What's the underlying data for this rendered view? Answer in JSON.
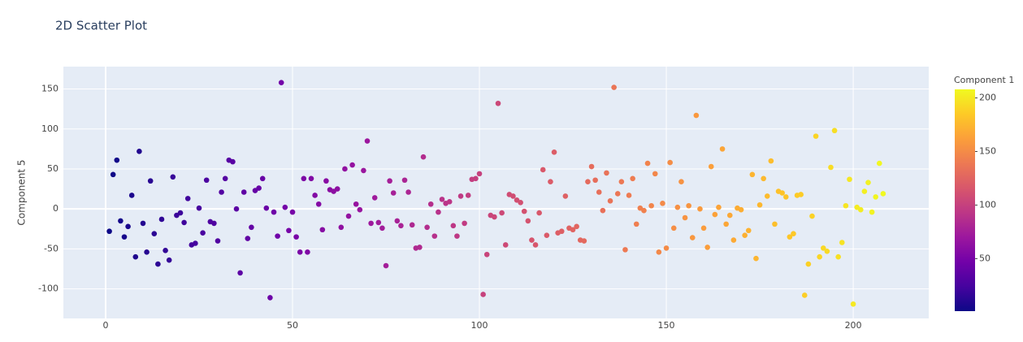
{
  "chart_data": {
    "type": "scatter",
    "title": "2D Scatter Plot",
    "y_label": "Component 5",
    "x": [
      1,
      2,
      3,
      4,
      5,
      6,
      7,
      8,
      9,
      10,
      11,
      12,
      13,
      14,
      15,
      16,
      17,
      18,
      19,
      20,
      21,
      22,
      23,
      24,
      25,
      26,
      27,
      28,
      29,
      30,
      31,
      32,
      33,
      34,
      35,
      36,
      37,
      38,
      39,
      40,
      41,
      42,
      43,
      44,
      45,
      46,
      47,
      48,
      49,
      50,
      51,
      52,
      53,
      54,
      55,
      56,
      57,
      58,
      59,
      60,
      61,
      62,
      63,
      64,
      65,
      66,
      67,
      68,
      69,
      70,
      71,
      72,
      73,
      74,
      75,
      76,
      77,
      78,
      79,
      80,
      81,
      82,
      83,
      84,
      85,
      86,
      87,
      88,
      89,
      90,
      91,
      92,
      93,
      94,
      95,
      96,
      97,
      98,
      99,
      100,
      101,
      102,
      103,
      104,
      105,
      106,
      107,
      108,
      109,
      110,
      111,
      112,
      113,
      114,
      115,
      116,
      117,
      118,
      119,
      120,
      121,
      122,
      123,
      124,
      125,
      126,
      127,
      128,
      129,
      130,
      131,
      132,
      133,
      134,
      135,
      136,
      137,
      138,
      139,
      140,
      141,
      142,
      143,
      144,
      145,
      146,
      147,
      148,
      149,
      150,
      151,
      152,
      153,
      154,
      155,
      156,
      157,
      158,
      159,
      160,
      161,
      162,
      163,
      164,
      165,
      166,
      167,
      168,
      169,
      170,
      171,
      172,
      173,
      174,
      175,
      176,
      177,
      178,
      179,
      180,
      181,
      182,
      183,
      184,
      185,
      186,
      187,
      188,
      189,
      190,
      191,
      192,
      193,
      194,
      195,
      196,
      197,
      198,
      199,
      200,
      201,
      202,
      203,
      204,
      205,
      206,
      207,
      208
    ],
    "y": [
      -28,
      43,
      61,
      -15,
      -35,
      -22,
      17,
      -60,
      72,
      -18,
      -54,
      35,
      -31,
      -69,
      -13,
      -52,
      -64,
      40,
      -8,
      -5,
      -17,
      13,
      -45,
      -43,
      1,
      -30,
      36,
      -16,
      -18,
      -40,
      21,
      38,
      61,
      59,
      0,
      -80,
      21,
      -37,
      -23,
      23,
      26,
      38,
      1,
      -111,
      -4,
      -34,
      158,
      2,
      -27,
      -4,
      -35,
      -54,
      38,
      -54,
      38,
      17,
      6,
      -26,
      35,
      24,
      22,
      25,
      -23,
      50,
      -9,
      55,
      6,
      -1,
      48,
      85,
      -18,
      14,
      -17,
      -24,
      -71,
      35,
      20,
      -15,
      -21,
      36,
      21,
      -20,
      -49,
      -48,
      65,
      -23,
      6,
      -34,
      -4,
      12,
      7,
      9,
      -21,
      -34,
      16,
      -18,
      17,
      37,
      38,
      44,
      -107,
      -57,
      -8,
      -10,
      132,
      -5,
      -45,
      18,
      16,
      11,
      8,
      -3,
      -15,
      -39,
      -45,
      -5,
      49,
      -33,
      34,
      71,
      -30,
      -28,
      16,
      -24,
      -26,
      -22,
      -39,
      -40,
      34,
      53,
      36,
      21,
      -2,
      45,
      10,
      152,
      19,
      34,
      -51,
      17,
      38,
      -19,
      1,
      -2,
      57,
      4,
      44,
      -54,
      7,
      -49,
      58,
      -24,
      2,
      34,
      -11,
      4,
      -36,
      117,
      0,
      -24,
      -48,
      53,
      -7,
      2,
      75,
      -19,
      -8,
      -39,
      1,
      -1,
      -33,
      -27,
      43,
      -62,
      5,
      38,
      16,
      60,
      -19,
      22,
      20,
      15,
      -35,
      -31,
      17,
      18,
      -108,
      -69,
      -9,
      91,
      -60,
      -49,
      -53,
      52,
      98,
      -60,
      -42,
      4,
      37,
      -119,
      2,
      -1,
      22,
      33,
      -4,
      15,
      57,
      19
    ],
    "xlim": [
      -11.3,
      220.2
    ],
    "ylim": [
      -137,
      178
    ],
    "xticks": [
      0,
      50,
      100,
      150,
      200
    ],
    "yticks": [
      -100,
      -50,
      0,
      50,
      100,
      150
    ],
    "grid": true,
    "colorbar_title": "Component 1",
    "clim": [
      1,
      208
    ],
    "colorbar_ticks": [
      50,
      100,
      150,
      200
    ],
    "colorscale": [
      "#0d0887",
      "#46039f",
      "#7201a8",
      "#9c179e",
      "#bd3786",
      "#d8576b",
      "#ed7953",
      "#fb9f3a",
      "#fdca26",
      "#f0f921"
    ]
  }
}
